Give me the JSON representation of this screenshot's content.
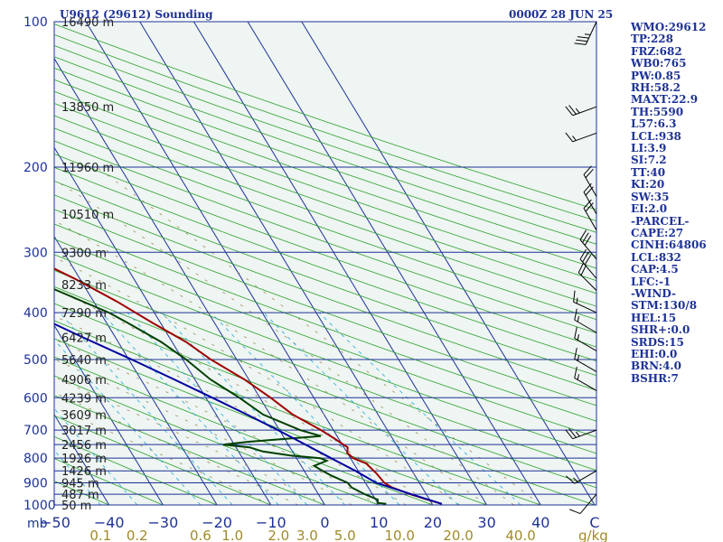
{
  "header": {
    "station": "U9612 (29612) Sounding",
    "valid_time": "0000Z 28 JUN 25"
  },
  "indices": [
    "WMO:29612",
    "TP:228",
    "FRZ:682",
    "WB0:765",
    "PW:0.85",
    "RH:58.2",
    "MAXT:22.9",
    "TH:5590",
    "L57:6.3",
    "LCL:938",
    "LI:3.9",
    "SI:7.2",
    "TT:40",
    "KI:20",
    "SW:35",
    "EI:2.0",
    "-PARCEL-",
    "CAPE:27",
    "CINH:64806",
    "LCL:832",
    "CAP:4.5",
    "LFC:-1",
    "-WIND-",
    "STM:130/8",
    "HEL:15",
    "SHR+:0.0",
    "SRDS:15",
    "EHI:0.0",
    "BRN:4.0",
    "BSHR:7"
  ],
  "chart_data": {
    "type": "skew-t log-p sounding",
    "pressure_axis": {
      "unit": "mb",
      "range": [
        1000,
        100
      ],
      "scale": "log",
      "ticks": [
        100,
        200,
        300,
        400,
        500,
        600,
        700,
        800,
        900,
        1000
      ]
    },
    "temperature_axis": {
      "unit": "°C",
      "range": [
        -50,
        50
      ],
      "ticks": [
        -50,
        -40,
        -30,
        -20,
        -10,
        0,
        10,
        20,
        30,
        40,
        50
      ],
      "tick_labels": [
        "−50",
        "−40",
        "−30",
        "−20",
        "−10",
        "0",
        "10",
        "20",
        "30",
        "40",
        "C"
      ]
    },
    "mixing_ratio_axis": {
      "unit": "g/kg",
      "ticks": [
        "0.1",
        "0.2",
        "0.6",
        "1.0",
        "2.0",
        "3.0",
        "5.0",
        "10.0",
        "20.0",
        "40.0"
      ]
    },
    "height_labels": [
      {
        "p": 100,
        "label": "16490 m"
      },
      {
        "p": 150,
        "label": "13850 m"
      },
      {
        "p": 200,
        "label": "11960 m"
      },
      {
        "p": 250,
        "label": "10510 m"
      },
      {
        "p": 300,
        "label": "9300 m"
      },
      {
        "p": 350,
        "label": "8233 m"
      },
      {
        "p": 400,
        "label": "7290 m"
      },
      {
        "p": 450,
        "label": "6427 m"
      },
      {
        "p": 500,
        "label": "5640 m"
      },
      {
        "p": 550,
        "label": "4906 m"
      },
      {
        "p": 600,
        "label": "4239 m"
      },
      {
        "p": 650,
        "label": "3609 m"
      },
      {
        "p": 700,
        "label": "3017 m"
      },
      {
        "p": 750,
        "label": "2456 m"
      },
      {
        "p": 800,
        "label": "1926 m"
      },
      {
        "p": 850,
        "label": "1426 m"
      },
      {
        "p": 900,
        "label": "945 m"
      },
      {
        "p": 950,
        "label": "487 m"
      },
      {
        "p": 1000,
        "label": "50 m"
      }
    ],
    "series": [
      {
        "name": "temperature",
        "color": "#a00000",
        "points": [
          [
            995,
            21.8
          ],
          [
            975,
            19.6
          ],
          [
            950,
            17.0
          ],
          [
            920,
            14.4
          ],
          [
            900,
            13.5
          ],
          [
            860,
            13.1
          ],
          [
            820,
            12.3
          ],
          [
            800,
            10.5
          ],
          [
            780,
            10.0
          ],
          [
            760,
            10.7
          ],
          [
            730,
            9.3
          ],
          [
            700,
            7.7
          ],
          [
            650,
            4.2
          ],
          [
            600,
            2.0
          ],
          [
            550,
            -0.8
          ],
          [
            500,
            -4.8
          ],
          [
            460,
            -7.4
          ],
          [
            420,
            -11.5
          ],
          [
            380,
            -15.6
          ],
          [
            340,
            -21.0
          ],
          [
            300,
            -27.9
          ],
          [
            275,
            -33.0
          ],
          [
            250,
            -37.4
          ],
          [
            230,
            -40.6
          ],
          [
            215,
            -43.6
          ],
          [
            200,
            -48.7
          ],
          [
            180,
            -54.2
          ],
          [
            150,
            -61.0
          ],
          [
            125,
            -67.5
          ],
          [
            100,
            -75.0
          ]
        ]
      },
      {
        "name": "dewpoint",
        "color": "#004000",
        "points": [
          [
            995,
            11.5
          ],
          [
            990,
            10.0
          ],
          [
            975,
            10.4
          ],
          [
            950,
            8.6
          ],
          [
            920,
            6.9
          ],
          [
            900,
            6.7
          ],
          [
            870,
            4.5
          ],
          [
            850,
            3.4
          ],
          [
            830,
            2.4
          ],
          [
            810,
            5.3
          ],
          [
            800,
            4.4
          ],
          [
            790,
            -0.8
          ],
          [
            775,
            -5.5
          ],
          [
            760,
            -7.5
          ],
          [
            750,
            -12.1
          ],
          [
            740,
            -7.0
          ],
          [
            720,
            7.0
          ],
          [
            700,
            3.8
          ],
          [
            650,
            -1.3
          ],
          [
            600,
            -3.8
          ],
          [
            550,
            -7.1
          ],
          [
            500,
            -9.4
          ],
          [
            460,
            -12.0
          ],
          [
            420,
            -16.1
          ],
          [
            400,
            -18.4
          ],
          [
            350,
            -27.4
          ],
          [
            300,
            -35.6
          ],
          [
            275,
            -40.1
          ],
          [
            250,
            -45.0
          ],
          [
            230,
            -48.8
          ],
          [
            220,
            -50.3
          ],
          [
            210,
            -55.3
          ],
          [
            200,
            -58.7
          ],
          [
            180,
            -62.7
          ],
          [
            150,
            -69.8
          ],
          [
            125,
            -74.2
          ],
          [
            100,
            -80.2
          ]
        ]
      },
      {
        "name": "parcel",
        "color": "#0000a0",
        "points": [
          [
            995,
            21.8
          ],
          [
            950,
            17.2
          ],
          [
            900,
            12.0
          ],
          [
            850,
            9.5
          ],
          [
            800,
            6.4
          ],
          [
            750,
            3.2
          ],
          [
            700,
            -0.3
          ],
          [
            650,
            -4.3
          ],
          [
            600,
            -8.8
          ],
          [
            550,
            -13.8
          ],
          [
            500,
            -19.5
          ],
          [
            450,
            -26.0
          ],
          [
            400,
            -33.0
          ],
          [
            350,
            -41.0
          ],
          [
            300,
            -50.0
          ],
          [
            250,
            -59.0
          ],
          [
            200,
            -68.5
          ],
          [
            150,
            -78.0
          ],
          [
            120,
            -84.0
          ]
        ]
      }
    ],
    "wind_barbs": [
      {
        "p": 100,
        "dir": 205,
        "speed_kt": 35
      },
      {
        "p": 150,
        "dir": 250,
        "speed_kt": 25
      },
      {
        "p": 170,
        "dir": 250,
        "speed_kt": 15
      },
      {
        "p": 230,
        "dir": 330,
        "speed_kt": 20
      },
      {
        "p": 250,
        "dir": 330,
        "speed_kt": 20
      },
      {
        "p": 270,
        "dir": 330,
        "speed_kt": 20
      },
      {
        "p": 310,
        "dir": 320,
        "speed_kt": 30
      },
      {
        "p": 340,
        "dir": 320,
        "speed_kt": 30
      },
      {
        "p": 360,
        "dir": 315,
        "speed_kt": 20
      },
      {
        "p": 400,
        "dir": 295,
        "speed_kt": 15
      },
      {
        "p": 440,
        "dir": 300,
        "speed_kt": 15
      },
      {
        "p": 480,
        "dir": 300,
        "speed_kt": 15
      },
      {
        "p": 530,
        "dir": 300,
        "speed_kt": 15
      },
      {
        "p": 580,
        "dir": 300,
        "speed_kt": 15
      },
      {
        "p": 700,
        "dir": 250,
        "speed_kt": 25
      },
      {
        "p": 850,
        "dir": 240,
        "speed_kt": 15
      },
      {
        "p": 950,
        "dir": 220,
        "speed_kt": 10
      }
    ]
  }
}
